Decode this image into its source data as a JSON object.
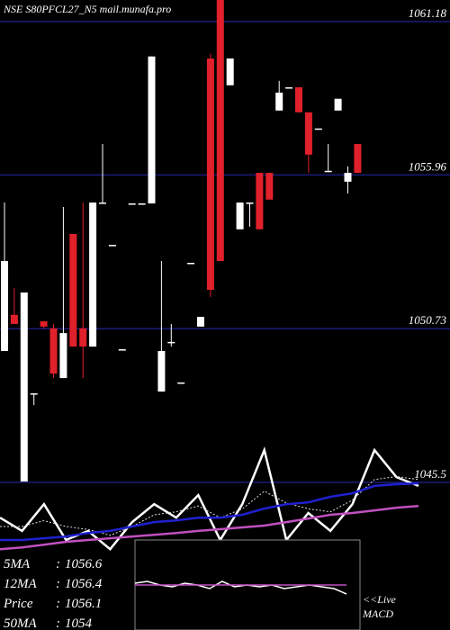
{
  "chart_data": {
    "type": "candlestick",
    "title": "NSE S80PFCL27_N5 mail.munafa.pro",
    "ylim": [
      1040.48,
      1061.91
    ],
    "yticks": [
      1061.18,
      1055.96,
      1050.73,
      1045.5
    ],
    "grid": true,
    "up_color": "#ffffff",
    "down_color": "#e0202a",
    "open": [
      1049.97,
      1051.2,
      1045.53,
      1048.53,
      1050.98,
      1050.74,
      1049.05,
      1053.95,
      1050.74,
      1050.12,
      1054.99,
      1053.58,
      1050.03,
      1054.99,
      1054.99,
      1054.99,
      1048.59,
      1050.28,
      1048.9,
      1052.97,
      1050.8,
      1059.92,
      1061.91,
      1059.01,
      1054.11,
      1055.02,
      1056.03,
      1056.03,
      1058.15,
      1058.94,
      1058.94,
      1058.09,
      1057.54,
      1056.1,
      1058.15,
      1055.73,
      1057.01
    ],
    "high": [
      1055.02,
      1052.11,
      1051.96,
      1048.53,
      1050.98,
      1050.89,
      1054.87,
      1053.95,
      1055.02,
      1055.02,
      1057.01,
      1053.58,
      1050.03,
      1054.99,
      1054.99,
      1059.99,
      1053.03,
      1050.89,
      1048.9,
      1052.97,
      1051.13,
      1060.08,
      1061.91,
      1059.92,
      1055.02,
      1055.02,
      1056.03,
      1056.03,
      1059.16,
      1058.94,
      1058.94,
      1058.09,
      1057.54,
      1057.01,
      1058.55,
      1056.25,
      1057.01
    ],
    "low": [
      1049.97,
      1050.89,
      1045.53,
      1048.13,
      1050.74,
      1049.05,
      1049.05,
      1050.12,
      1049.05,
      1050.12,
      1054.99,
      1053.58,
      1050.03,
      1054.99,
      1054.99,
      1054.99,
      1048.59,
      1050.12,
      1048.9,
      1052.97,
      1050.8,
      1051.81,
      1053.03,
      1059.01,
      1054.11,
      1054.2,
      1054.11,
      1055.12,
      1058.15,
      1058.94,
      1058.09,
      1056.03,
      1057.54,
      1056.1,
      1058.15,
      1055.33,
      1056.03
    ],
    "close": [
      1053.03,
      1050.89,
      1051.96,
      1048.53,
      1050.8,
      1049.2,
      1050.58,
      1050.12,
      1050.12,
      1055.02,
      1055.02,
      1053.58,
      1050.03,
      1054.99,
      1054.99,
      1059.99,
      1049.97,
      1050.28,
      1048.9,
      1052.97,
      1051.13,
      1052.05,
      1053.03,
      1059.92,
      1055.02,
      1055.02,
      1054.11,
      1055.12,
      1058.76,
      1058.94,
      1058.09,
      1056.65,
      1057.54,
      1056.1,
      1058.55,
      1056.03,
      1056.03
    ],
    "series": [
      {
        "color": "#ffffff",
        "values": [
          1044.3,
          1043.85,
          1044.76,
          1043.54,
          1043.85,
          1043.23,
          1044.15,
          1044.76,
          1044.3,
          1045.07,
          1043.54,
          1044.76,
          1046.6,
          1043.54,
          1044.46,
          1043.85,
          1044.76,
          1046.6,
          1045.68,
          1045.38
        ]
      },
      {
        "color": "#dddddd",
        "dashed": true,
        "values": [
          1044.0,
          1044.0,
          1044.2,
          1044.0,
          1043.9,
          1043.7,
          1044.0,
          1044.4,
          1044.5,
          1044.7,
          1044.3,
          1044.6,
          1045.2,
          1044.8,
          1044.6,
          1044.5,
          1044.9,
          1045.6,
          1045.7,
          1045.6
        ]
      },
      {
        "color": "#2020d0",
        "values": [
          1043.54,
          1043.54,
          1043.6,
          1043.66,
          1043.78,
          1043.85,
          1044.0,
          1044.15,
          1044.21,
          1044.3,
          1044.3,
          1044.4,
          1044.61,
          1044.76,
          1044.82,
          1045.01,
          1045.13,
          1045.38,
          1045.44,
          1045.47
        ]
      },
      {
        "color": "#c050c0",
        "values": [
          1043.23,
          1043.29,
          1043.38,
          1043.48,
          1043.54,
          1043.6,
          1043.66,
          1043.72,
          1043.78,
          1043.85,
          1043.91,
          1043.97,
          1044.03,
          1044.15,
          1044.27,
          1044.4,
          1044.46,
          1044.55,
          1044.64,
          1044.7
        ]
      }
    ],
    "indicators": [
      {
        "label": "5MA",
        "value": 1056.6
      },
      {
        "label": "12MA",
        "value": 1056.4
      },
      {
        "label": "Price",
        "value": 1056.1
      },
      {
        "label": "50MA",
        "value": 1054
      }
    ],
    "macd": {
      "label": [
        "<<Live",
        "MACD"
      ],
      "ylim": [
        -1,
        1
      ],
      "series": [
        {
          "color": "#ffffff",
          "values": [
            0.1,
            0.2,
            0.0,
            -0.1,
            0.1,
            0.0,
            -0.2,
            0.2,
            -0.1,
            0.0,
            -0.1,
            0.0,
            -0.2,
            -0.1,
            0.0,
            -0.1,
            -0.2,
            -0.5
          ]
        },
        {
          "color": "#c050c0",
          "values": [
            0,
            0,
            0,
            0,
            0,
            0,
            0,
            0,
            0,
            0,
            0,
            0,
            0,
            0,
            0,
            0,
            0,
            0
          ]
        }
      ]
    }
  }
}
